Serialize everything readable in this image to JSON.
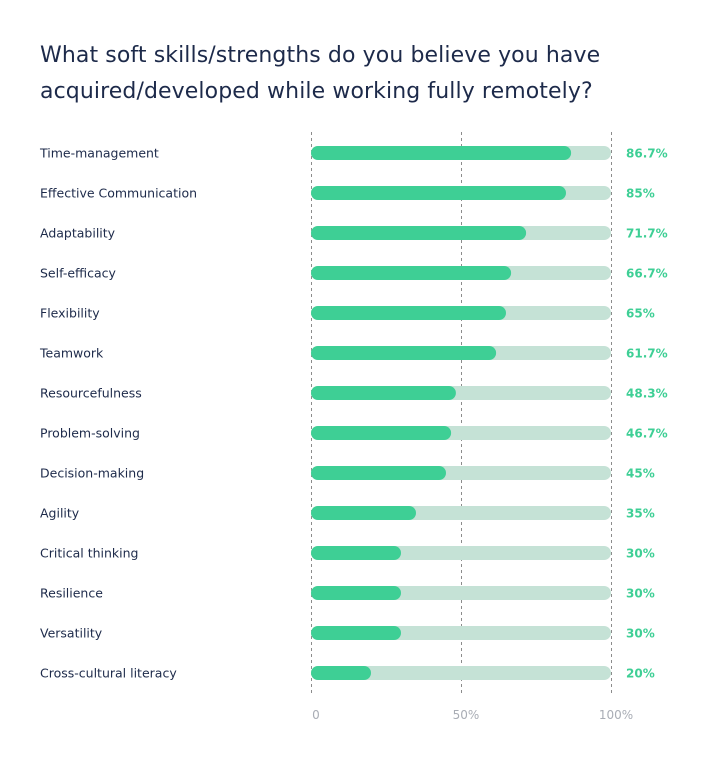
{
  "chart_data": {
    "type": "bar",
    "orientation": "horizontal",
    "title": "What soft skills/strengths do you believe you have acquired/developed while working fully remotely?",
    "categories": [
      "Time-management",
      "Effective Communication",
      "Adaptability",
      "Self-efficacy",
      "Flexibility",
      "Teamwork",
      "Resourcefulness",
      "Problem-solving",
      "Decision-making",
      "Agility",
      "Critical thinking",
      "Resilience",
      "Versatility",
      "Cross-cultural literacy"
    ],
    "values": [
      86.7,
      85,
      71.7,
      66.7,
      65,
      61.7,
      48.3,
      46.7,
      45,
      35,
      30,
      30,
      30,
      20
    ],
    "value_labels": [
      "86.7%",
      "85%",
      "71.7%",
      "66.7%",
      "65%",
      "61.7%",
      "48.3%",
      "46.7%",
      "45%",
      "35%",
      "30%",
      "30%",
      "30%",
      "20%"
    ],
    "xlim": [
      0,
      100
    ],
    "x_ticks": [
      {
        "value": 0,
        "label": "0"
      },
      {
        "value": 50,
        "label": "50%"
      },
      {
        "value": 100,
        "label": "100%"
      }
    ],
    "grid": true,
    "colors": {
      "bar": "#3ecf95",
      "track": "#c5e2d6",
      "value_text": "#3ecf95",
      "category_text": "#1d2a4a",
      "tick_text": "#a9adb5",
      "grid": "#8c8c8c"
    }
  }
}
